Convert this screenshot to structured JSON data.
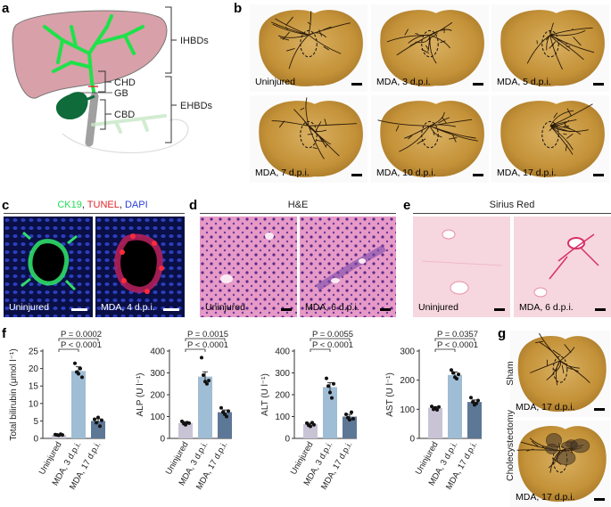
{
  "panels": {
    "a": {
      "letter": "a",
      "labels": {
        "ihbds": "IHBDs",
        "chd": "CHD",
        "gb": "GB",
        "ehbds": "EHBDs",
        "cbd": "CBD"
      }
    },
    "b": {
      "letter": "b",
      "images": [
        {
          "caption": "Uninjured"
        },
        {
          "caption": "MDA, 3 d.p.i."
        },
        {
          "caption": "MDA, 5 d.p.i."
        },
        {
          "caption": "MDA, 7 d.p.i."
        },
        {
          "caption": "MDA, 10 d.p.i."
        },
        {
          "caption": "MDA, 17 d.p.i."
        }
      ]
    },
    "c": {
      "letter": "c",
      "stain_labels": [
        {
          "text": "CK19",
          "color": "#22dd55"
        },
        {
          "text": ", ",
          "color": "#222222"
        },
        {
          "text": "TUNEL",
          "color": "#e0262b"
        },
        {
          "text": ", ",
          "color": "#222222"
        },
        {
          "text": "DAPI",
          "color": "#2a3fd8"
        }
      ],
      "images": [
        {
          "caption": "Uninjured"
        },
        {
          "caption": "MDA, 4 d.p.i."
        }
      ]
    },
    "d": {
      "letter": "d",
      "title": "H&E",
      "images": [
        {
          "caption": "Uninjured"
        },
        {
          "caption": "MDA, 6 d.p.i."
        }
      ]
    },
    "e": {
      "letter": "e",
      "title": "Sirius Red",
      "images": [
        {
          "caption": "Uninjured"
        },
        {
          "caption": "MDA, 6 d.p.i."
        }
      ]
    },
    "f": {
      "letter": "f"
    },
    "g": {
      "letter": "g",
      "images": [
        {
          "side_label": "Sham",
          "caption": "MDA, 17 d.p.i."
        },
        {
          "side_label": "Cholecystectomy",
          "caption": "MDA, 17 d.p.i."
        }
      ]
    }
  },
  "chart_data": [
    {
      "type": "bar",
      "ylabel": "Total bilirubin (μmol l⁻¹)",
      "ylim": [
        0,
        25
      ],
      "yticks": [
        0,
        5,
        10,
        15,
        20,
        25
      ],
      "categories": [
        "Uninjured",
        "MDA, 3 d.p.i.",
        "MDA, 17 d.p.i."
      ],
      "values": [
        1,
        19.3,
        5
      ],
      "errors": [
        0.2,
        1.2,
        0.6
      ],
      "points": [
        [
          1.1,
          1.0,
          0.9,
          1.2,
          1.0
        ],
        [
          21.5,
          19,
          18.5,
          20,
          17.5
        ],
        [
          5.5,
          4.5,
          6,
          3.5,
          5.2
        ]
      ],
      "colors": [
        "#c9c3d6",
        "#9fbdd4",
        "#5d7796"
      ],
      "significance": [
        {
          "text": "P = 0.0002",
          "from": 0,
          "to": 2
        },
        {
          "text": "P < 0.0001",
          "from": 0,
          "to": 1
        }
      ]
    },
    {
      "type": "bar",
      "ylabel": "ALP (U l⁻¹)",
      "ylim": [
        0,
        400
      ],
      "yticks": [
        0,
        100,
        200,
        300,
        400
      ],
      "categories": [
        "Uninjured",
        "MDA, 3 d.p.i.",
        "MDA, 17 d.p.i."
      ],
      "values": [
        70,
        283,
        120
      ],
      "errors": [
        7,
        22,
        10
      ],
      "points": [
        [
          78,
          68,
          62,
          72,
          70
        ],
        [
          370,
          290,
          260,
          250,
          265
        ],
        [
          140,
          120,
          110,
          100,
          125
        ]
      ],
      "colors": [
        "#c9c3d6",
        "#9fbdd4",
        "#5d7796"
      ],
      "significance": [
        {
          "text": "P = 0.0015",
          "from": 0,
          "to": 2
        },
        {
          "text": "P < 0.0001",
          "from": 0,
          "to": 1
        }
      ]
    },
    {
      "type": "bar",
      "ylabel": "ALT (U l⁻¹)",
      "ylim": [
        0,
        400
      ],
      "yticks": [
        0,
        100,
        200,
        300,
        400
      ],
      "categories": [
        "Uninjured",
        "MDA, 3 d.p.i.",
        "MDA, 17 d.p.i."
      ],
      "values": [
        65,
        235,
        100
      ],
      "errors": [
        5,
        20,
        10
      ],
      "points": [
        [
          70,
          60,
          55,
          72,
          62
        ],
        [
          275,
          240,
          210,
          185,
          250
        ],
        [
          110,
          95,
          85,
          120,
          90
        ]
      ],
      "colors": [
        "#c9c3d6",
        "#9fbdd4",
        "#5d7796"
      ],
      "significance": [
        {
          "text": "P = 0.0055",
          "from": 0,
          "to": 2
        },
        {
          "text": "P < 0.0001",
          "from": 0,
          "to": 1
        }
      ]
    },
    {
      "type": "bar",
      "ylabel": "AST (U l⁻¹)",
      "ylim": [
        0,
        300
      ],
      "yticks": [
        0,
        100,
        200,
        300
      ],
      "categories": [
        "Uninjured",
        "MDA, 3 d.p.i.",
        "MDA, 17 d.p.i."
      ],
      "values": [
        105,
        218,
        125
      ],
      "errors": [
        4,
        10,
        7
      ],
      "points": [
        [
          110,
          100,
          105,
          98,
          108
        ],
        [
          235,
          225,
          210,
          205,
          220
        ],
        [
          140,
          125,
          115,
          120,
          130
        ]
      ],
      "colors": [
        "#c9c3d6",
        "#9fbdd4",
        "#5d7796"
      ],
      "significance": [
        {
          "text": "P = 0.0357",
          "from": 0,
          "to": 2
        },
        {
          "text": "P < 0.0001",
          "from": 0,
          "to": 1
        }
      ]
    }
  ]
}
